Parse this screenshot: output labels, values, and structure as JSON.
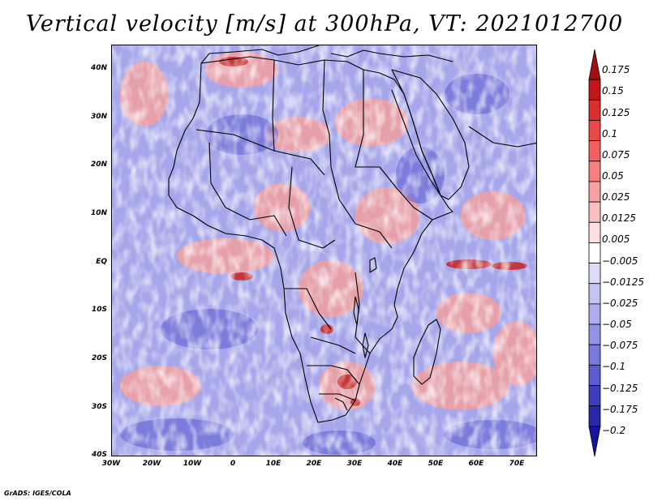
{
  "title": "Vertical velocity [m/s] at 300hPa, VT: 2021012700",
  "credit": "GrADS: IGES/COLA",
  "map": {
    "lat_labels": [
      "40N",
      "30N",
      "20N",
      "10N",
      "EQ",
      "10S",
      "20S",
      "30S",
      "40S"
    ],
    "lon_labels": [
      "30W",
      "20W",
      "10W",
      "0",
      "10E",
      "20E",
      "30E",
      "40E",
      "50E",
      "60E",
      "70E"
    ]
  },
  "colorbar": {
    "labels": [
      "0.175",
      "0.15",
      "0.125",
      "0.1",
      "0.075",
      "0.05",
      "0.025",
      "0.0125",
      "0.005",
      "−0.005",
      "−0.0125",
      "−0.025",
      "−0.05",
      "−0.075",
      "−0.1",
      "−0.125",
      "−0.175",
      "−0.2"
    ],
    "colors": [
      "#a01010",
      "#c01818",
      "#d83030",
      "#e84848",
      "#f06060",
      "#f48080",
      "#f6a0a0",
      "#f8c0c0",
      "#fce0e0",
      "#ffffff",
      "#dcdcf8",
      "#c4c4f2",
      "#aeaeee",
      "#9292e6",
      "#7878dc",
      "#5c5ccf",
      "#3c3cbd",
      "#2828a6",
      "#1414a0"
    ]
  }
}
